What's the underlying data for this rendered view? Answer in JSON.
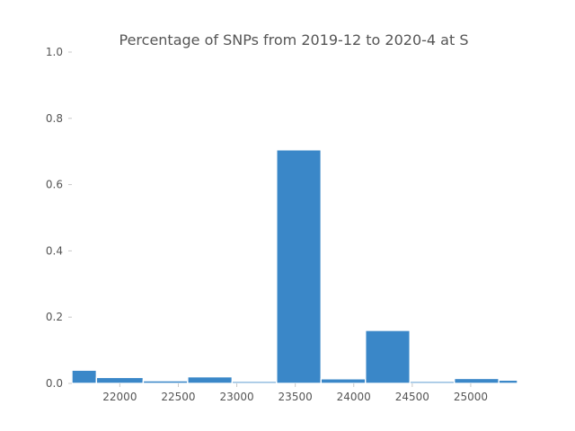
{
  "chart_data": {
    "type": "bar",
    "title": "Percentage of SNPs from 2019-12 to 2020-4 at S",
    "xlabel": "",
    "ylabel": "",
    "xlim": [
      21590,
      25400
    ],
    "ylim": [
      0,
      1.0
    ],
    "bin_edges": [
      21590,
      21800,
      22200,
      22580,
      22960,
      23340,
      23720,
      24100,
      24480,
      24860,
      25240,
      25400
    ],
    "values": [
      0.04,
      0.018,
      0.008,
      0.02,
      0.006,
      0.705,
      0.014,
      0.16,
      0.006,
      0.015,
      0.01
    ],
    "x_ticks": [
      22000,
      22500,
      23000,
      23500,
      24000,
      24500,
      25000
    ],
    "x_tick_labels": [
      "22000",
      "22500",
      "23000",
      "23500",
      "24000",
      "24500",
      "25000"
    ],
    "y_ticks": [
      0.0,
      0.2,
      0.4,
      0.6,
      0.8,
      1.0
    ],
    "y_tick_labels": [
      "0.0",
      "0.2",
      "0.4",
      "0.6",
      "0.8",
      "1.0"
    ],
    "grid": false,
    "colors": {
      "bar": "#3a87c8",
      "bar_edge": "#ffffff",
      "text": "#555555"
    }
  }
}
